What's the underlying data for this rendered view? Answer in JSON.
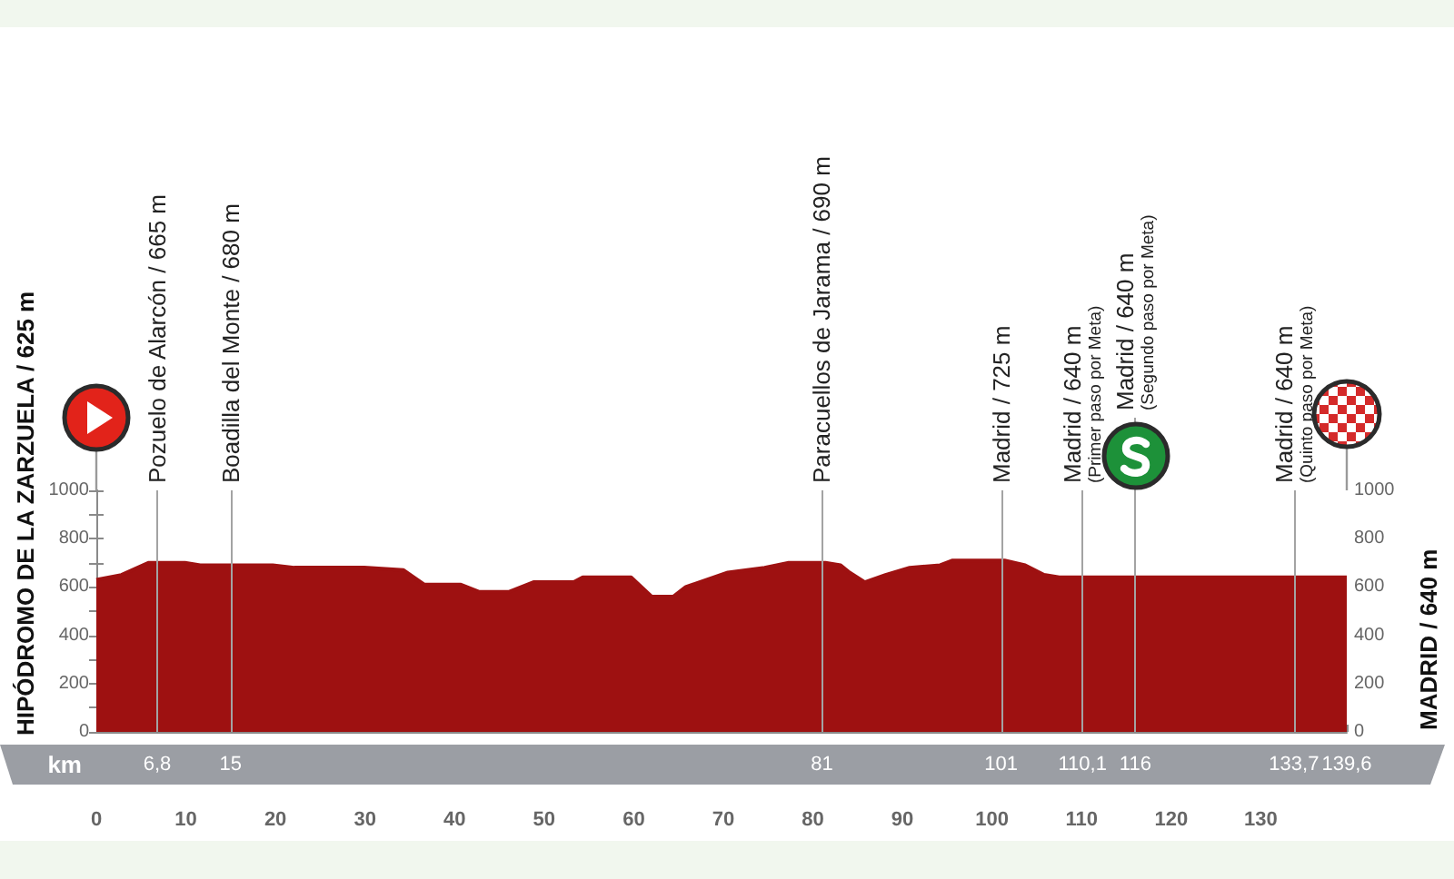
{
  "chart_data": {
    "type": "area",
    "annotations": [
      "HIPÓDROMO DE LA ZARZUELA / 625 m",
      "MADRID / 640 m"
    ],
    "x2label": "km",
    "x": [
      0,
      2.8,
      5.8,
      9.9,
      11.6,
      15.3,
      19.7,
      22.1,
      29.9,
      34.3,
      36.6,
      40.7,
      42.7,
      46.1,
      48.8,
      53.3,
      54.3,
      59.7,
      62,
      64.4,
      65.8,
      70.5,
      74.6,
      77.3,
      81.4,
      83.1,
      84.1,
      85.8,
      88.1,
      90.8,
      94.2,
      95.6,
      101.4,
      103.7,
      105.8,
      107.5,
      139.6
    ],
    "values": [
      630,
      650,
      700,
      700,
      690,
      690,
      690,
      680,
      680,
      670,
      610,
      610,
      580,
      580,
      620,
      620,
      640,
      640,
      560,
      560,
      600,
      660,
      680,
      700,
      700,
      690,
      660,
      620,
      650,
      680,
      690,
      710,
      710,
      690,
      650,
      640,
      640
    ],
    "color": "#9e1111",
    "xlim": [
      0,
      139.6
    ],
    "xticks": [
      0,
      10,
      20,
      30,
      40,
      50,
      60,
      70,
      80,
      90,
      100,
      110,
      120,
      130,
      {
        "value": 139.6,
        "label": null
      }
    ],
    "x2lim": [
      0,
      139.6
    ],
    "x2ticks": [
      {
        "value": 6.8,
        "label": "6,8"
      },
      15,
      81,
      101,
      {
        "value": 110.1,
        "label": "110,1"
      },
      116,
      {
        "value": 133.7,
        "label": "133,7"
      },
      {
        "value": 139.6,
        "label": "139,6"
      }
    ],
    "ylim": [
      0,
      1000
    ],
    "yticks": [
      0,
      {
        "value": 100,
        "label": null
      },
      200,
      {
        "value": 300,
        "label": null
      },
      400,
      {
        "value": 500,
        "label": null
      },
      600,
      {
        "value": 700,
        "label": null
      },
      800,
      {
        "value": 900,
        "label": null
      },
      1000
    ],
    "y2lim": [
      0,
      1000
    ],
    "y2ticks": [
      0,
      {
        "value": 100,
        "label": null
      },
      200,
      {
        "value": 300,
        "label": null
      },
      400,
      {
        "value": 500,
        "label": null
      },
      600,
      {
        "value": 700,
        "label": null
      },
      800,
      {
        "value": 900,
        "label": null
      },
      1000
    ],
    "ref_lines": [
      {
        "axis": "x",
        "value": 6.8,
        "label": "Pozuelo de Alarcón / 665 m",
        "color": "#a3a3a3"
      },
      {
        "axis": "x",
        "value": 15,
        "label": "Boadilla del Monte / 680 m",
        "color": "#a3a3a3"
      },
      {
        "axis": "x",
        "value": 81,
        "label": "Paracuellos de Jarama / 690 m",
        "color": "#a3a3a3"
      },
      {
        "axis": "x",
        "value": 101,
        "label": "Madrid / 725 m",
        "color": "#a3a3a3"
      },
      {
        "axis": "x",
        "value": 110.1,
        "label": "Madrid / 640 m\n(Primer paso por Meta)",
        "color": "#a3a3a3"
      },
      {
        "axis": "x",
        "value": 116,
        "label": "Madrid / 640 m\n(Segundo paso por Meta)",
        "color": "#a3a3a3"
      },
      {
        "axis": "x",
        "value": 133.7,
        "label": "Madrid / 640 m\n(Quinto paso por Meta)",
        "color": "#a3a3a3"
      }
    ]
  }
}
